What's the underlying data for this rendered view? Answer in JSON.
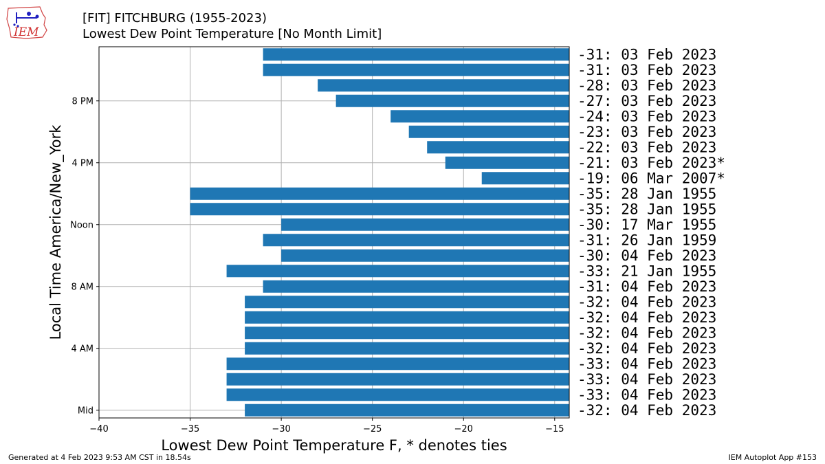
{
  "header": {
    "logo_text": "IEM",
    "title": "[FIT] FITCHBURG (1955-2023)",
    "subtitle": "Lowest Dew Point Temperature [No Month Limit]"
  },
  "footer": {
    "generated": "Generated at 4 Feb 2023 9:53 AM CST in 18.54s",
    "app": "IEM Autoplot App #153"
  },
  "colors": {
    "bar": "#1f77b4",
    "grid": "#b0b0b0"
  },
  "chart_data": {
    "type": "bar",
    "orientation": "horizontal",
    "xlabel": "Lowest Dew Point Temperature F, * denotes ties",
    "ylabel": "Local Time America/New_York",
    "xlim": [
      -40,
      -14.2
    ],
    "xticks": [
      -40,
      -35,
      -30,
      -25,
      -20,
      -15
    ],
    "ylim": [
      -0.5,
      23.5
    ],
    "yticks": [
      {
        "hour": 0,
        "label": "Mid"
      },
      {
        "hour": 4,
        "label": "4 AM"
      },
      {
        "hour": 8,
        "label": "8 AM"
      },
      {
        "hour": 12,
        "label": "Noon"
      },
      {
        "hour": 16,
        "label": "4 PM"
      },
      {
        "hour": 20,
        "label": "8 PM"
      }
    ],
    "grid": true,
    "hours": [
      0,
      1,
      2,
      3,
      4,
      5,
      6,
      7,
      8,
      9,
      10,
      11,
      12,
      13,
      14,
      15,
      16,
      17,
      18,
      19,
      20,
      21,
      22,
      23
    ],
    "values": [
      -32,
      -33,
      -33,
      -33,
      -32,
      -32,
      -32,
      -32,
      -31,
      -33,
      -30,
      -31,
      -30,
      -35,
      -35,
      -19,
      -21,
      -22,
      -23,
      -24,
      -27,
      -28,
      -31,
      -31
    ],
    "labels": [
      "-32: 04 Feb 2023",
      "-33: 04 Feb 2023",
      "-33: 04 Feb 2023",
      "-33: 04 Feb 2023",
      "-32: 04 Feb 2023",
      "-32: 04 Feb 2023",
      "-32: 04 Feb 2023",
      "-32: 04 Feb 2023",
      "-31: 04 Feb 2023",
      "-33: 21 Jan 1955",
      "-30: 04 Feb 2023",
      "-31: 26 Jan 1959",
      "-30: 17 Mar 1955",
      "-35: 28 Jan 1955",
      "-35: 28 Jan 1955",
      "-19: 06 Mar 2007*",
      "-21: 03 Feb 2023*",
      "-22: 03 Feb 2023",
      "-23: 03 Feb 2023",
      "-24: 03 Feb 2023",
      "-27: 03 Feb 2023",
      "-28: 03 Feb 2023",
      "-31: 03 Feb 2023",
      "-31: 03 Feb 2023"
    ]
  }
}
